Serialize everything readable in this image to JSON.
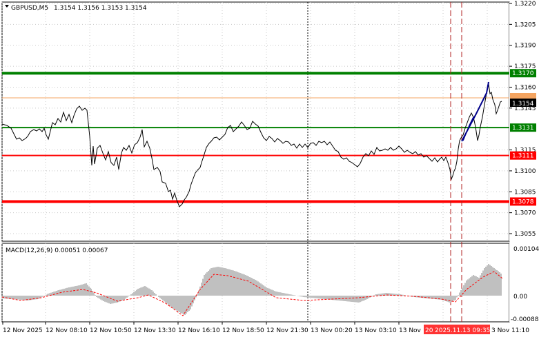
{
  "header": {
    "symbol": "GBPUSD,M5",
    "ohlc": "1.3154 1.3156 1.3153 1.3154"
  },
  "price_axis": {
    "labels": [
      "1.3220",
      "1.3205",
      "1.3190",
      "1.3175",
      "1.3160",
      "1.3145",
      "1.3115",
      "1.3100",
      "1.3085",
      "1.3070",
      "1.3055"
    ]
  },
  "levels": [
    {
      "label": "1.3170",
      "color": "#008000",
      "width": 4
    },
    {
      "label": "1.3131",
      "color": "#008000",
      "width": 2
    },
    {
      "label": "1.3111",
      "color": "#ff0000",
      "width": 2
    },
    {
      "label": "1.3078",
      "color": "#ff0000",
      "width": 4
    }
  ],
  "bid": {
    "label": "1.3154",
    "ask_color": "#f4a460"
  },
  "macd": {
    "title": "MACD(12,26,9) 0.00051 0.00067",
    "labels": [
      "0.00104",
      "0.00",
      "-0.00088"
    ]
  },
  "time_axis": {
    "labels": [
      "12 Nov 2025",
      "12 Nov 08:10",
      "12 Nov 10:50",
      "12 Nov 13:30",
      "12 Nov 16:10",
      "12 Nov 18:50",
      "12 Nov 21:30",
      "13 Nov 00:20",
      "13 Nov 03:10",
      "13 Nov",
      "2025.11.13 09:35",
      "3 Nov 11:10"
    ],
    "highlight": "20"
  },
  "colors": {
    "price_line": "#000000",
    "trend": "#00008b",
    "macd_hist": "#c0c0c0",
    "macd_signal": "#ff0000",
    "vline": "#b22222"
  }
}
